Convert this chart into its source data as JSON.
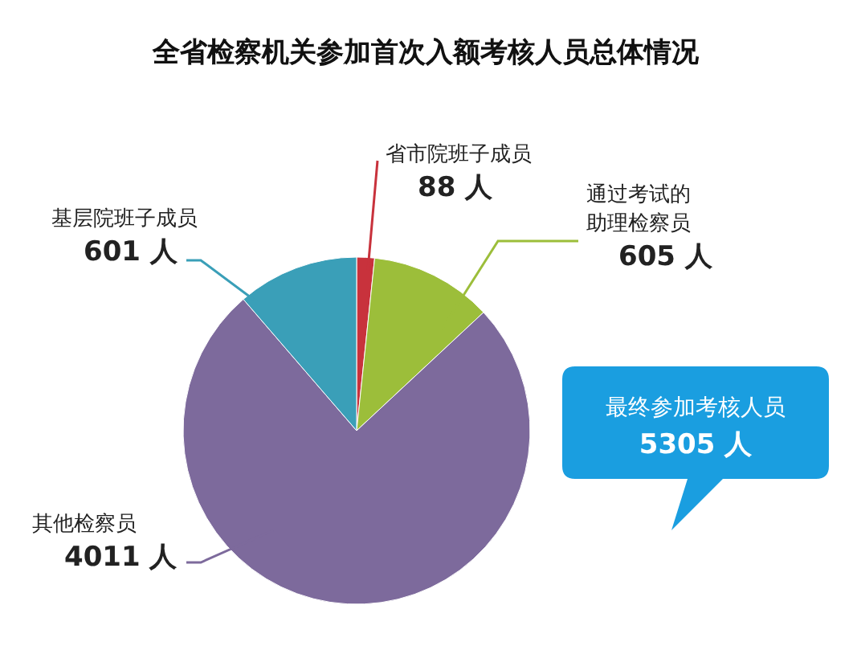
{
  "chart_data": {
    "type": "pie",
    "title": "全省检察机关参加首次入额考核人员总体情况",
    "categories": [
      "省市院班子成员",
      "通过考试的助理检察员",
      "其他检察员",
      "基层院班子成员"
    ],
    "values": [
      88,
      605,
      4011,
      601
    ],
    "colors": [
      "#c8323c",
      "#9cbe3a",
      "#7d6a9c",
      "#3a9fb8"
    ],
    "value_labels": [
      "88 人",
      "605 人",
      "4011 人",
      "601 人"
    ],
    "annotations": [
      "最终参加考核人员",
      "5305 人"
    ]
  }
}
